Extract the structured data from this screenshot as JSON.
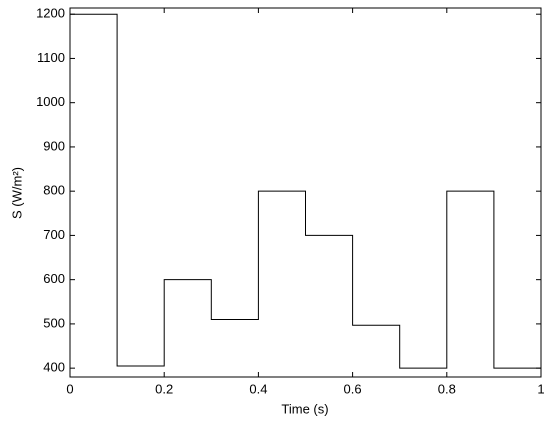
{
  "chart_data": {
    "type": "line",
    "xlabel": "Time (s)",
    "ylabel": "S (W/m²)",
    "x": [
      0,
      0.1,
      0.1,
      0.2,
      0.2,
      0.3,
      0.3,
      0.4,
      0.4,
      0.5,
      0.5,
      0.6,
      0.6,
      0.7,
      0.7,
      0.8,
      0.8,
      0.9,
      0.9,
      1
    ],
    "series": [
      {
        "color": "#000000",
        "values": [
          1200,
          1200,
          405,
          405,
          600,
          600,
          510,
          510,
          800,
          800,
          700,
          700,
          497,
          497,
          400,
          400,
          800,
          800,
          400,
          400
        ]
      }
    ],
    "xlim": [
      0,
      1
    ],
    "xticks": [
      0,
      0.2,
      0.4,
      0.6,
      0.8,
      1
    ],
    "ylim": [
      380,
      1214
    ],
    "yticks": [
      400,
      500,
      600,
      700,
      800,
      900,
      1000,
      1100,
      1200
    ],
    "grid": false
  }
}
